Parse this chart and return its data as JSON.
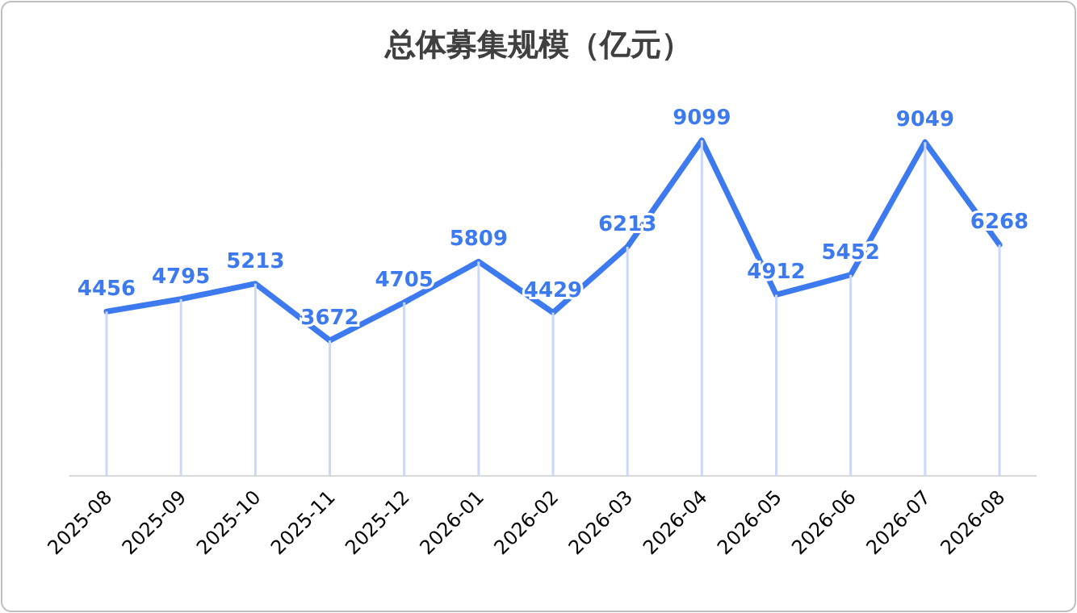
{
  "chart_data": {
    "type": "line",
    "title": "总体募集规模（亿元）",
    "categories": [
      "2025-08",
      "2025-09",
      "2025-10",
      "2025-11",
      "2025-12",
      "2026-01",
      "2026-02",
      "2026-03",
      "2026-04",
      "2026-05",
      "2026-06",
      "2026-07",
      "2026-08"
    ],
    "series": [
      {
        "type": "bar",
        "color": "#c9d8fb",
        "values": [
          4456,
          4795,
          5213,
          3672,
          4705,
          5809,
          4429,
          6213,
          9099,
          4912,
          5452,
          9049,
          6268
        ]
      },
      {
        "color": "#3d7af0",
        "values": [
          4456,
          4795,
          5213,
          3672,
          4705,
          5809,
          4429,
          6213,
          9099,
          4912,
          5452,
          9049,
          6268
        ],
        "value_labels": [
          "4456",
          "4795",
          "5213",
          "3672",
          "4705",
          "5809",
          "4429",
          "6213",
          "9099",
          "4912",
          "5452",
          "9049",
          "6268"
        ]
      }
    ],
    "tick_labels": "x",
    "marker": "none",
    "line_style": "solid"
  }
}
